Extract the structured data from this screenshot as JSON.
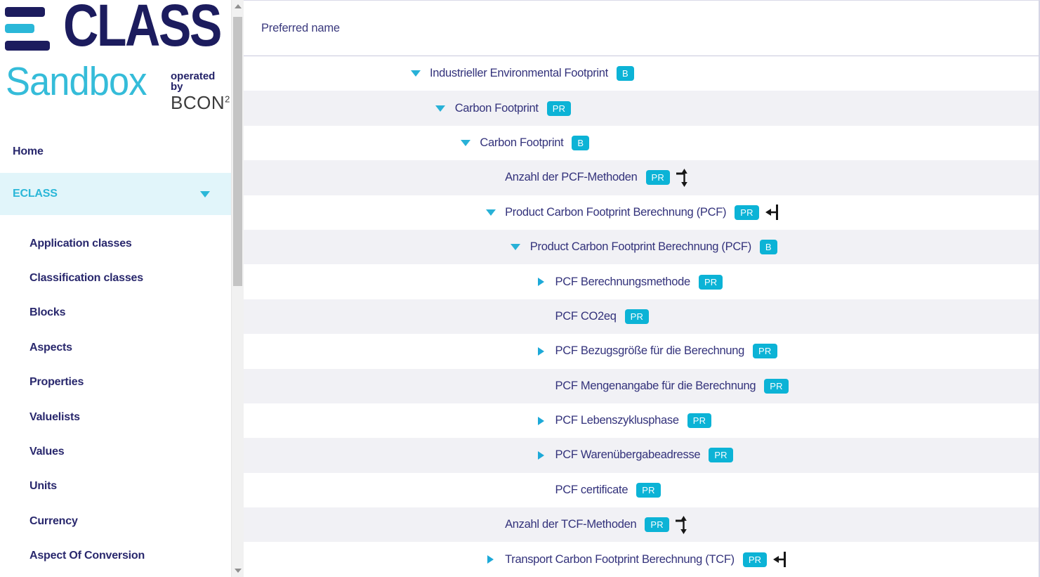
{
  "brand": {
    "logo_main": "CLASS",
    "logo_sub": "Sandbox",
    "operated_by": "operated by",
    "operator": "BCON",
    "operator_sup": "2"
  },
  "sidebar": {
    "items": [
      {
        "label": "Home",
        "level": 0,
        "active": false,
        "expandable": false
      },
      {
        "label": "ECLASS",
        "level": 0,
        "active": true,
        "expandable": true
      },
      {
        "label": "Application classes",
        "level": 1,
        "active": false,
        "expandable": false
      },
      {
        "label": "Classification classes",
        "level": 1,
        "active": false,
        "expandable": false
      },
      {
        "label": "Blocks",
        "level": 1,
        "active": false,
        "expandable": false
      },
      {
        "label": "Aspects",
        "level": 1,
        "active": false,
        "expandable": false
      },
      {
        "label": "Properties",
        "level": 1,
        "active": false,
        "expandable": false
      },
      {
        "label": "Valuelists",
        "level": 1,
        "active": false,
        "expandable": false
      },
      {
        "label": "Values",
        "level": 1,
        "active": false,
        "expandable": false
      },
      {
        "label": "Units",
        "level": 1,
        "active": false,
        "expandable": false
      },
      {
        "label": "Currency",
        "level": 1,
        "active": false,
        "expandable": false
      },
      {
        "label": "Aspect Of Conversion",
        "level": 1,
        "active": false,
        "expandable": false
      }
    ]
  },
  "main": {
    "column_header": "Preferred name",
    "tree_rows": [
      {
        "label": "Industrieller Environmental Footprint",
        "badge": "B",
        "level": 0,
        "arrow": "expanded",
        "icon": null
      },
      {
        "label": "Carbon Footprint",
        "badge": "PR",
        "level": 1,
        "arrow": "expanded",
        "icon": null
      },
      {
        "label": "Carbon Footprint",
        "badge": "B",
        "level": 2,
        "arrow": "expanded",
        "icon": null
      },
      {
        "label": "Anzahl der PCF-Methoden",
        "badge": "PR",
        "level": 3,
        "arrow": "none",
        "icon": "vertical-range"
      },
      {
        "label": "Product Carbon Footprint Berechnung (PCF)",
        "badge": "PR",
        "level": 3,
        "arrow": "expanded",
        "icon": "arrow-left-bar"
      },
      {
        "label": "Product Carbon Footprint Berechnung (PCF)",
        "badge": "B",
        "level": 4,
        "arrow": "expanded",
        "icon": null
      },
      {
        "label": "PCF Berechnungsmethode",
        "badge": "PR",
        "level": 5,
        "arrow": "collapsed",
        "icon": null
      },
      {
        "label": "PCF CO2eq",
        "badge": "PR",
        "level": 5,
        "arrow": "none",
        "icon": null
      },
      {
        "label": "PCF Bezugsgröße für die Berechnung",
        "badge": "PR",
        "level": 5,
        "arrow": "collapsed",
        "icon": null
      },
      {
        "label": "PCF Mengenangabe für die Berechnung",
        "badge": "PR",
        "level": 5,
        "arrow": "none",
        "icon": null
      },
      {
        "label": "PCF Lebenszyklusphase",
        "badge": "PR",
        "level": 5,
        "arrow": "collapsed",
        "icon": null
      },
      {
        "label": "PCF Warenübergabeadresse",
        "badge": "PR",
        "level": 5,
        "arrow": "collapsed",
        "icon": null
      },
      {
        "label": "PCF certificate",
        "badge": "PR",
        "level": 5,
        "arrow": "none",
        "icon": null
      },
      {
        "label": "Anzahl der TCF-Methoden",
        "badge": "PR",
        "level": 3,
        "arrow": "none",
        "icon": "vertical-range"
      },
      {
        "label": "Transport Carbon Footprint Berechnung (TCF)",
        "badge": "PR",
        "level": 3,
        "arrow": "collapsed",
        "icon": "arrow-left-bar"
      }
    ]
  },
  "colors": {
    "brand_navy": "#1c1c5e",
    "brand_cyan": "#2ab7d8",
    "badge_cyan": "#0cb3d6",
    "tree_text": "#33327b",
    "row_alt": "#f1f1f5",
    "active_item_bg": "#e1f5fa",
    "icon_black": "#161616"
  }
}
